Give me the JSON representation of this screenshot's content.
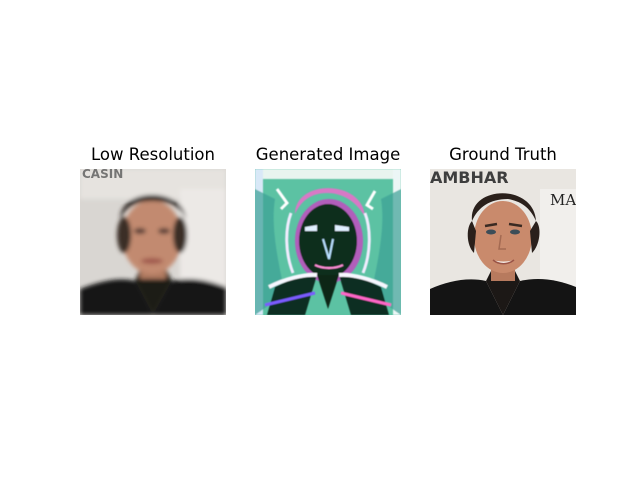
{
  "figure": {
    "panels": [
      {
        "title": "Low Resolution",
        "image_overlay_text": "CASIN"
      },
      {
        "title": "Generated Image"
      },
      {
        "title": "Ground Truth",
        "image_overlay_text": "AMBHAR",
        "image_side_text": "MA"
      }
    ]
  }
}
